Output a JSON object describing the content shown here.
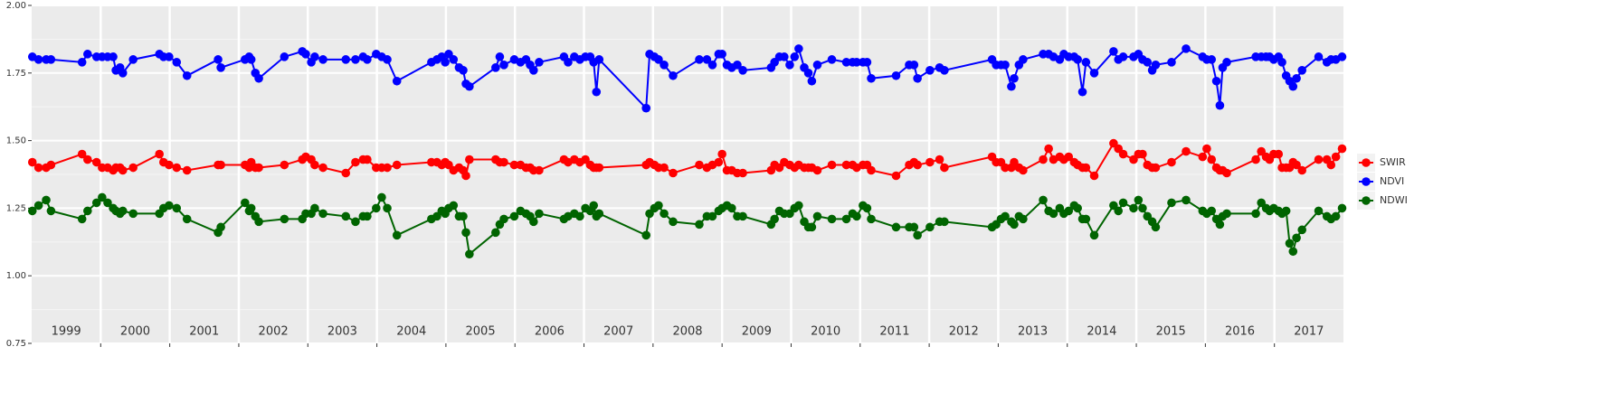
{
  "chart_data": {
    "type": "line",
    "x": [
      1999.01,
      1999.1,
      1999.21,
      1999.28,
      1999.73,
      1999.81,
      1999.94,
      2000.02,
      2000.1,
      2000.18,
      2000.22,
      2000.28,
      2000.32,
      2000.47,
      2000.85,
      2000.91,
      2000.99,
      2001.1,
      2001.25,
      2001.7,
      2001.74,
      2002.09,
      2002.15,
      2002.18,
      2002.24,
      2002.29,
      2002.66,
      2002.92,
      2002.97,
      2003.05,
      2003.1,
      2003.22,
      2003.55,
      2003.69,
      2003.8,
      2003.86,
      2003.99,
      2004.07,
      2004.15,
      2004.29,
      2004.79,
      2004.87,
      2004.94,
      2004.99,
      2005.04,
      2005.11,
      2005.19,
      2005.25,
      2005.29,
      2005.34,
      2005.72,
      2005.78,
      2005.84,
      2005.99,
      2006.08,
      2006.16,
      2006.22,
      2006.27,
      2006.35,
      2006.71,
      2006.77,
      2006.86,
      2006.94,
      2007.02,
      2007.09,
      2007.14,
      2007.18,
      2007.22,
      2007.9,
      2007.95,
      2008.02,
      2008.08,
      2008.16,
      2008.29,
      2008.67,
      2008.78,
      2008.86,
      2008.95,
      2009.0,
      2009.07,
      2009.14,
      2009.22,
      2009.3,
      2009.71,
      2009.76,
      2009.83,
      2009.9,
      2009.98,
      2010.05,
      2010.11,
      2010.19,
      2010.25,
      2010.3,
      2010.38,
      2010.59,
      2010.8,
      2010.89,
      2010.95,
      2011.04,
      2011.1,
      2011.16,
      2011.52,
      2011.71,
      2011.78,
      2011.83,
      2012.01,
      2012.15,
      2012.22,
      2012.91,
      2012.97,
      2013.04,
      2013.1,
      2013.19,
      2013.23,
      2013.3,
      2013.36,
      2013.65,
      2013.73,
      2013.8,
      2013.89,
      2013.95,
      2014.02,
      2014.1,
      2014.15,
      2014.22,
      2014.27,
      2014.39,
      2014.67,
      2014.74,
      2014.81,
      2014.96,
      2015.03,
      2015.09,
      2015.16,
      2015.23,
      2015.28,
      2015.51,
      2015.72,
      2015.96,
      2016.02,
      2016.09,
      2016.16,
      2016.21,
      2016.25,
      2016.31,
      2016.73,
      2016.81,
      2016.88,
      2016.93,
      2016.99,
      2017.06,
      2017.11,
      2017.17,
      2017.22,
      2017.27,
      2017.32,
      2017.4,
      2017.64,
      2017.76,
      2017.82,
      2017.89,
      2017.98
    ],
    "series": [
      {
        "name": "SWIR",
        "color": "#ff0000",
        "values": [
          1.42,
          1.4,
          1.4,
          1.41,
          1.45,
          1.43,
          1.42,
          1.4,
          1.4,
          1.39,
          1.4,
          1.4,
          1.39,
          1.4,
          1.45,
          1.42,
          1.41,
          1.4,
          1.39,
          1.41,
          1.41,
          1.41,
          1.4,
          1.42,
          1.4,
          1.4,
          1.41,
          1.43,
          1.44,
          1.43,
          1.41,
          1.4,
          1.38,
          1.42,
          1.43,
          1.43,
          1.4,
          1.4,
          1.4,
          1.41,
          1.42,
          1.42,
          1.41,
          1.42,
          1.41,
          1.39,
          1.4,
          1.39,
          1.37,
          1.43,
          1.43,
          1.42,
          1.42,
          1.41,
          1.41,
          1.4,
          1.4,
          1.39,
          1.39,
          1.43,
          1.42,
          1.43,
          1.42,
          1.43,
          1.41,
          1.4,
          1.4,
          1.4,
          1.41,
          1.42,
          1.41,
          1.4,
          1.4,
          1.38,
          1.41,
          1.4,
          1.41,
          1.42,
          1.45,
          1.39,
          1.39,
          1.38,
          1.38,
          1.39,
          1.41,
          1.4,
          1.42,
          1.41,
          1.4,
          1.41,
          1.4,
          1.4,
          1.4,
          1.39,
          1.41,
          1.41,
          1.41,
          1.4,
          1.41,
          1.41,
          1.39,
          1.37,
          1.41,
          1.42,
          1.41,
          1.42,
          1.43,
          1.4,
          1.44,
          1.42,
          1.42,
          1.4,
          1.4,
          1.42,
          1.4,
          1.39,
          1.43,
          1.47,
          1.43,
          1.44,
          1.43,
          1.44,
          1.42,
          1.41,
          1.4,
          1.4,
          1.37,
          1.49,
          1.47,
          1.45,
          1.43,
          1.45,
          1.45,
          1.41,
          1.4,
          1.4,
          1.42,
          1.46,
          1.44,
          1.47,
          1.43,
          1.4,
          1.39,
          1.39,
          1.38,
          1.43,
          1.46,
          1.44,
          1.43,
          1.45,
          1.45,
          1.4,
          1.4,
          1.4,
          1.42,
          1.41,
          1.39,
          1.43,
          1.43,
          1.41,
          1.44,
          1.47
        ]
      },
      {
        "name": "NDVI",
        "color": "#0000ff",
        "values": [
          1.81,
          1.8,
          1.8,
          1.8,
          1.79,
          1.82,
          1.81,
          1.81,
          1.81,
          1.81,
          1.76,
          1.77,
          1.75,
          1.8,
          1.82,
          1.81,
          1.81,
          1.79,
          1.74,
          1.8,
          1.77,
          1.8,
          1.81,
          1.8,
          1.75,
          1.73,
          1.81,
          1.83,
          1.82,
          1.79,
          1.81,
          1.8,
          1.8,
          1.8,
          1.81,
          1.8,
          1.82,
          1.81,
          1.8,
          1.72,
          1.79,
          1.8,
          1.81,
          1.79,
          1.82,
          1.8,
          1.77,
          1.76,
          1.71,
          1.7,
          1.77,
          1.81,
          1.78,
          1.8,
          1.79,
          1.8,
          1.78,
          1.76,
          1.79,
          1.81,
          1.79,
          1.81,
          1.8,
          1.81,
          1.81,
          1.79,
          1.68,
          1.8,
          1.62,
          1.82,
          1.81,
          1.8,
          1.78,
          1.74,
          1.8,
          1.8,
          1.78,
          1.82,
          1.82,
          1.78,
          1.77,
          1.78,
          1.76,
          1.77,
          1.79,
          1.81,
          1.81,
          1.78,
          1.81,
          1.84,
          1.77,
          1.75,
          1.72,
          1.78,
          1.8,
          1.79,
          1.79,
          1.79,
          1.79,
          1.79,
          1.73,
          1.74,
          1.78,
          1.78,
          1.73,
          1.76,
          1.77,
          1.76,
          1.8,
          1.78,
          1.78,
          1.78,
          1.7,
          1.73,
          1.78,
          1.8,
          1.82,
          1.82,
          1.81,
          1.8,
          1.82,
          1.81,
          1.81,
          1.8,
          1.68,
          1.79,
          1.75,
          1.83,
          1.8,
          1.81,
          1.81,
          1.82,
          1.8,
          1.79,
          1.76,
          1.78,
          1.79,
          1.84,
          1.81,
          1.8,
          1.8,
          1.72,
          1.63,
          1.77,
          1.79,
          1.81,
          1.81,
          1.81,
          1.81,
          1.8,
          1.81,
          1.79,
          1.74,
          1.72,
          1.7,
          1.73,
          1.76,
          1.81,
          1.79,
          1.8,
          1.8,
          1.81
        ]
      },
      {
        "name": "NDWI",
        "color": "#006400",
        "values": [
          1.24,
          1.26,
          1.28,
          1.24,
          1.21,
          1.24,
          1.27,
          1.29,
          1.27,
          1.25,
          1.24,
          1.23,
          1.24,
          1.23,
          1.23,
          1.25,
          1.26,
          1.25,
          1.21,
          1.16,
          1.18,
          1.27,
          1.24,
          1.25,
          1.22,
          1.2,
          1.21,
          1.21,
          1.23,
          1.23,
          1.25,
          1.23,
          1.22,
          1.2,
          1.22,
          1.22,
          1.25,
          1.29,
          1.25,
          1.15,
          1.21,
          1.22,
          1.24,
          1.23,
          1.25,
          1.26,
          1.22,
          1.22,
          1.16,
          1.08,
          1.16,
          1.19,
          1.21,
          1.22,
          1.24,
          1.23,
          1.22,
          1.2,
          1.23,
          1.21,
          1.22,
          1.23,
          1.22,
          1.25,
          1.24,
          1.26,
          1.22,
          1.23,
          1.15,
          1.23,
          1.25,
          1.26,
          1.23,
          1.2,
          1.19,
          1.22,
          1.22,
          1.24,
          1.25,
          1.26,
          1.25,
          1.22,
          1.22,
          1.19,
          1.21,
          1.24,
          1.23,
          1.23,
          1.25,
          1.26,
          1.2,
          1.18,
          1.18,
          1.22,
          1.21,
          1.21,
          1.23,
          1.22,
          1.26,
          1.25,
          1.21,
          1.18,
          1.18,
          1.18,
          1.15,
          1.18,
          1.2,
          1.2,
          1.18,
          1.19,
          1.21,
          1.22,
          1.2,
          1.19,
          1.22,
          1.21,
          1.28,
          1.24,
          1.23,
          1.25,
          1.23,
          1.24,
          1.26,
          1.25,
          1.21,
          1.21,
          1.15,
          1.26,
          1.24,
          1.27,
          1.25,
          1.28,
          1.25,
          1.22,
          1.2,
          1.18,
          1.27,
          1.28,
          1.24,
          1.23,
          1.24,
          1.21,
          1.19,
          1.22,
          1.23,
          1.23,
          1.27,
          1.25,
          1.24,
          1.25,
          1.24,
          1.23,
          1.24,
          1.12,
          1.09,
          1.14,
          1.17,
          1.24,
          1.22,
          1.21,
          1.22,
          1.25
        ]
      }
    ],
    "xlim": [
      1999,
      2018
    ],
    "xticks": [
      2000,
      2001,
      2002,
      2003,
      2004,
      2005,
      2006,
      2007,
      2008,
      2009,
      2010,
      2011,
      2012,
      2013,
      2014,
      2015,
      2016,
      2017
    ],
    "year_labels": [
      "1999",
      "2000",
      "2001",
      "2002",
      "2003",
      "2004",
      "2005",
      "2006",
      "2007",
      "2008",
      "2009",
      "2010",
      "2011",
      "2012",
      "2013",
      "2014",
      "2015",
      "2016",
      "2017"
    ],
    "ylim": [
      0.75,
      2.0
    ],
    "yticks": [
      {
        "value": 0.75,
        "label": "0.75"
      },
      {
        "value": 1.0,
        "label": "1.00"
      },
      {
        "value": 1.25,
        "label": "1.25"
      },
      {
        "value": 1.5,
        "label": "1.50"
      },
      {
        "value": 1.75,
        "label": "1.75"
      },
      {
        "value": 2.0,
        "label": "2.00"
      }
    ],
    "grid": true,
    "legend": "right"
  }
}
